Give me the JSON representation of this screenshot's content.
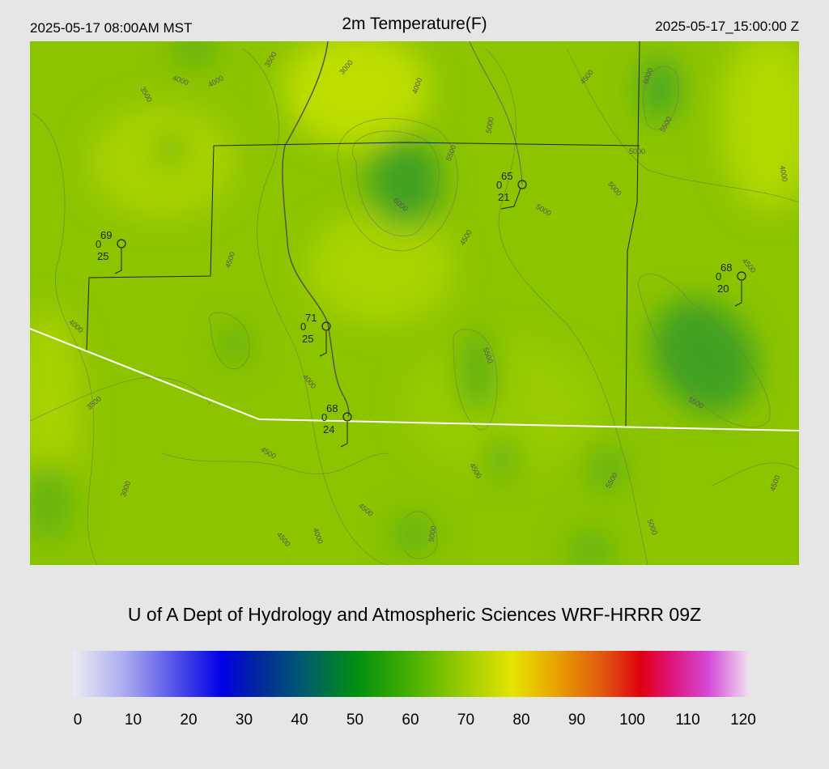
{
  "header": {
    "left": "2025-05-17 08:00AM MST",
    "title": "2m Temperature(F)",
    "right": "2025-05-17_15:00:00 Z"
  },
  "stations": [
    {
      "temp": 69,
      "left": 0,
      "bottom": 25
    },
    {
      "temp": 65,
      "left": 0,
      "bottom": 21
    },
    {
      "temp": 68,
      "left": 0,
      "bottom": 20
    },
    {
      "temp": 71,
      "left": 0,
      "bottom": 25
    },
    {
      "temp": 68,
      "left": 0,
      "bottom": 24
    }
  ],
  "contour_labels": [
    3500,
    3000,
    4000,
    4000,
    3500,
    4000,
    4500,
    6000,
    5000,
    5500,
    5500,
    5000,
    4000,
    6000,
    5000,
    5000,
    4500,
    4500,
    4500,
    4000,
    5500,
    4000,
    3500,
    5500,
    4500,
    4500,
    5500,
    3000,
    4500,
    4500,
    4000,
    4500,
    5000,
    5000
  ],
  "footer": "U of A Dept of Hydrology and Atmospheric Sciences WRF-HRRR 09Z",
  "colorbar": {
    "ticks": [
      0,
      10,
      20,
      30,
      40,
      50,
      60,
      70,
      80,
      90,
      100,
      110,
      120
    ]
  }
}
